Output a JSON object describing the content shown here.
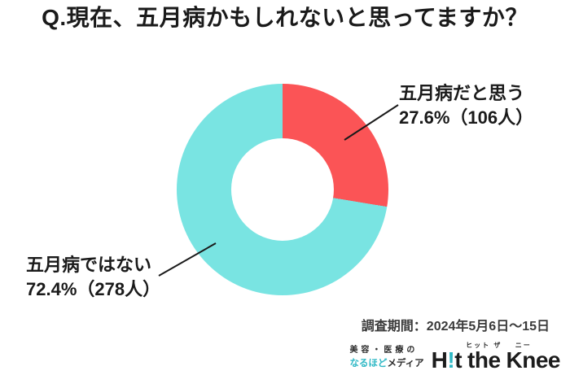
{
  "title": "Q.現在、五月病かもしれないと思ってますか？",
  "chart_data": {
    "type": "pie",
    "subtype": "donut",
    "title": "Q.現在、五月病かもしれないと思ってますか？",
    "labels": [
      "五月病だと思う",
      "五月病ではない"
    ],
    "values": [
      27.6,
      72.4
    ],
    "counts": [
      106,
      278
    ],
    "value_unit": "%",
    "count_unit": "人",
    "colors": [
      "#fb5456",
      "#79e4e2"
    ],
    "hole_ratio": 0.485,
    "start_angle_deg": 0,
    "direction": "clockwise",
    "legend": "none",
    "callouts": [
      {
        "label": "五月病だと思う",
        "value_text": "27.6%（106人）"
      },
      {
        "label": "五月病ではない",
        "value_text": "72.4%（278人）"
      }
    ]
  },
  "footer": {
    "survey_period": "調査期間：2024年5月6日～15日",
    "logo": {
      "tagline_line1": "美容・医療の",
      "tagline_highlight": "なるほど",
      "tagline_rest": "メディア",
      "brand_h": "H",
      "brand_exclaim": "!",
      "brand_t": "t",
      "brand_the": "the",
      "ruby_the": "ヒット ザ",
      "brand_knee": "Knee",
      "ruby_knee": "ニー",
      "accent_color": "#2fb8c5",
      "text_color": "#1c1c1c"
    }
  }
}
